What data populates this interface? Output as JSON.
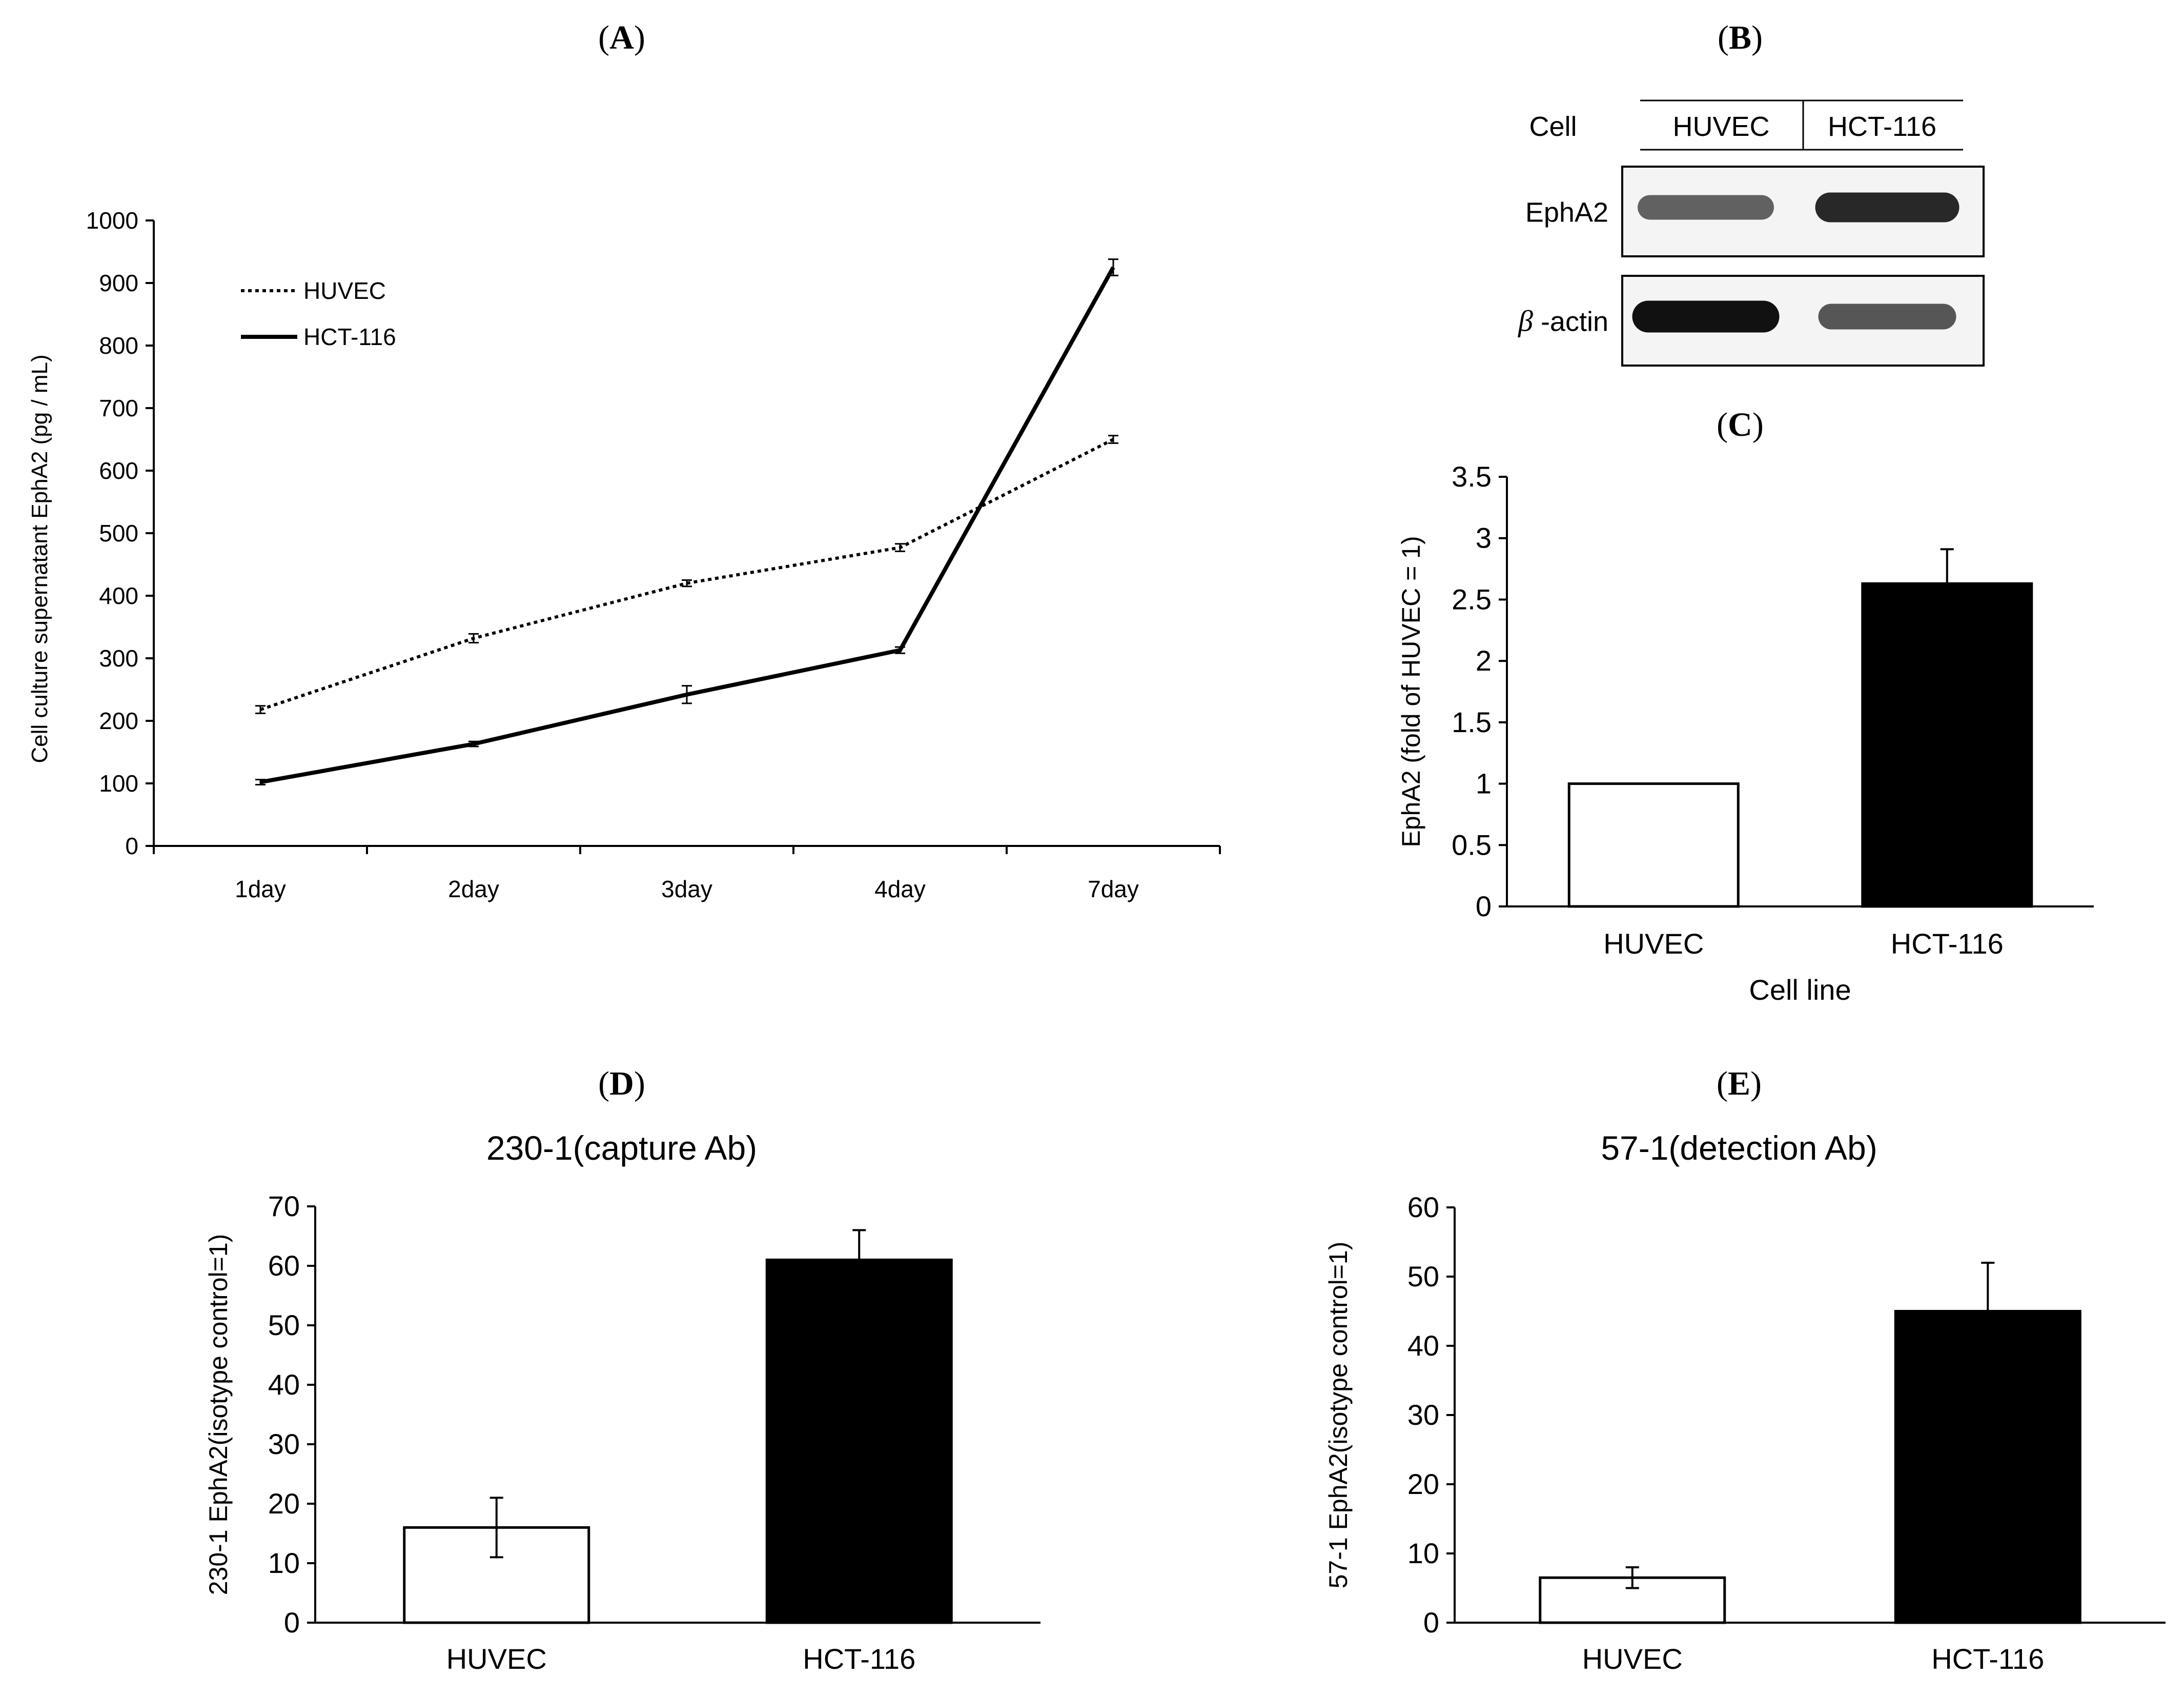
{
  "chart_data": [
    {
      "panel": "(A)",
      "type": "line",
      "categories": [
        "1day",
        "2day",
        "3day",
        "4day",
        "7day"
      ],
      "series": [
        {
          "name": "HUVEC",
          "style": "dotted",
          "values": [
            218,
            332,
            420,
            477,
            650
          ],
          "errors": [
            6,
            7,
            5,
            6,
            6
          ]
        },
        {
          "name": "HCT-116",
          "style": "solid",
          "values": [
            102,
            163,
            242,
            313,
            925
          ],
          "errors": [
            4,
            4,
            14,
            5,
            13
          ]
        }
      ],
      "ylabel": "Cell culture supernatant EphA2 (pg / mL)",
      "ylim": [
        0,
        1000
      ],
      "yticks": [
        0,
        100,
        200,
        300,
        400,
        500,
        600,
        700,
        800,
        900,
        1000
      ],
      "legend": "top-left"
    },
    {
      "panel": "(B)",
      "type": "western-blot",
      "header_label": "Cell",
      "lanes": [
        "HUVEC",
        "HCT-116"
      ],
      "rows": [
        {
          "label": "EphA2",
          "intensities": [
            0.6,
            0.85
          ]
        },
        {
          "label": "β -actin",
          "label_symbol": "β",
          "label_rest": " -actin",
          "intensities": [
            0.95,
            0.65
          ]
        }
      ]
    },
    {
      "panel": "(C)",
      "type": "bar",
      "categories": [
        "HUVEC",
        "HCT-116"
      ],
      "values": [
        1,
        2.63
      ],
      "errors": [
        0,
        0.28
      ],
      "colors": [
        "#ffffff",
        "#000000"
      ],
      "ylabel": "EphA2 (fold of HUVEC = 1)",
      "xlabel": "Cell line",
      "ylim": [
        0,
        3.5
      ],
      "yticks": [
        "0",
        "0.5",
        "1",
        "1.5",
        "2",
        "2.5",
        "3",
        "3.5"
      ]
    },
    {
      "panel": "(D)",
      "type": "bar",
      "title": "230-1(capture Ab)",
      "categories": [
        "HUVEC",
        "HCT-116"
      ],
      "values": [
        16,
        61
      ],
      "errors": [
        5,
        5
      ],
      "colors": [
        "#ffffff",
        "#000000"
      ],
      "ylabel": "230-1 EphA2(isotype control=1)",
      "ylim": [
        0,
        70
      ],
      "yticks": [
        "0",
        "10",
        "20",
        "30",
        "40",
        "50",
        "60",
        "70"
      ]
    },
    {
      "panel": "(E)",
      "type": "bar",
      "title": "57-1(detection Ab)",
      "categories": [
        "HUVEC",
        "HCT-116"
      ],
      "values": [
        6.5,
        45
      ],
      "errors": [
        1.5,
        7
      ],
      "colors": [
        "#ffffff",
        "#000000"
      ],
      "ylabel": "57-1 EphA2(isotype control=1)",
      "ylim": [
        0,
        60
      ],
      "yticks": [
        "0",
        "10",
        "20",
        "30",
        "40",
        "50",
        "60"
      ]
    }
  ]
}
